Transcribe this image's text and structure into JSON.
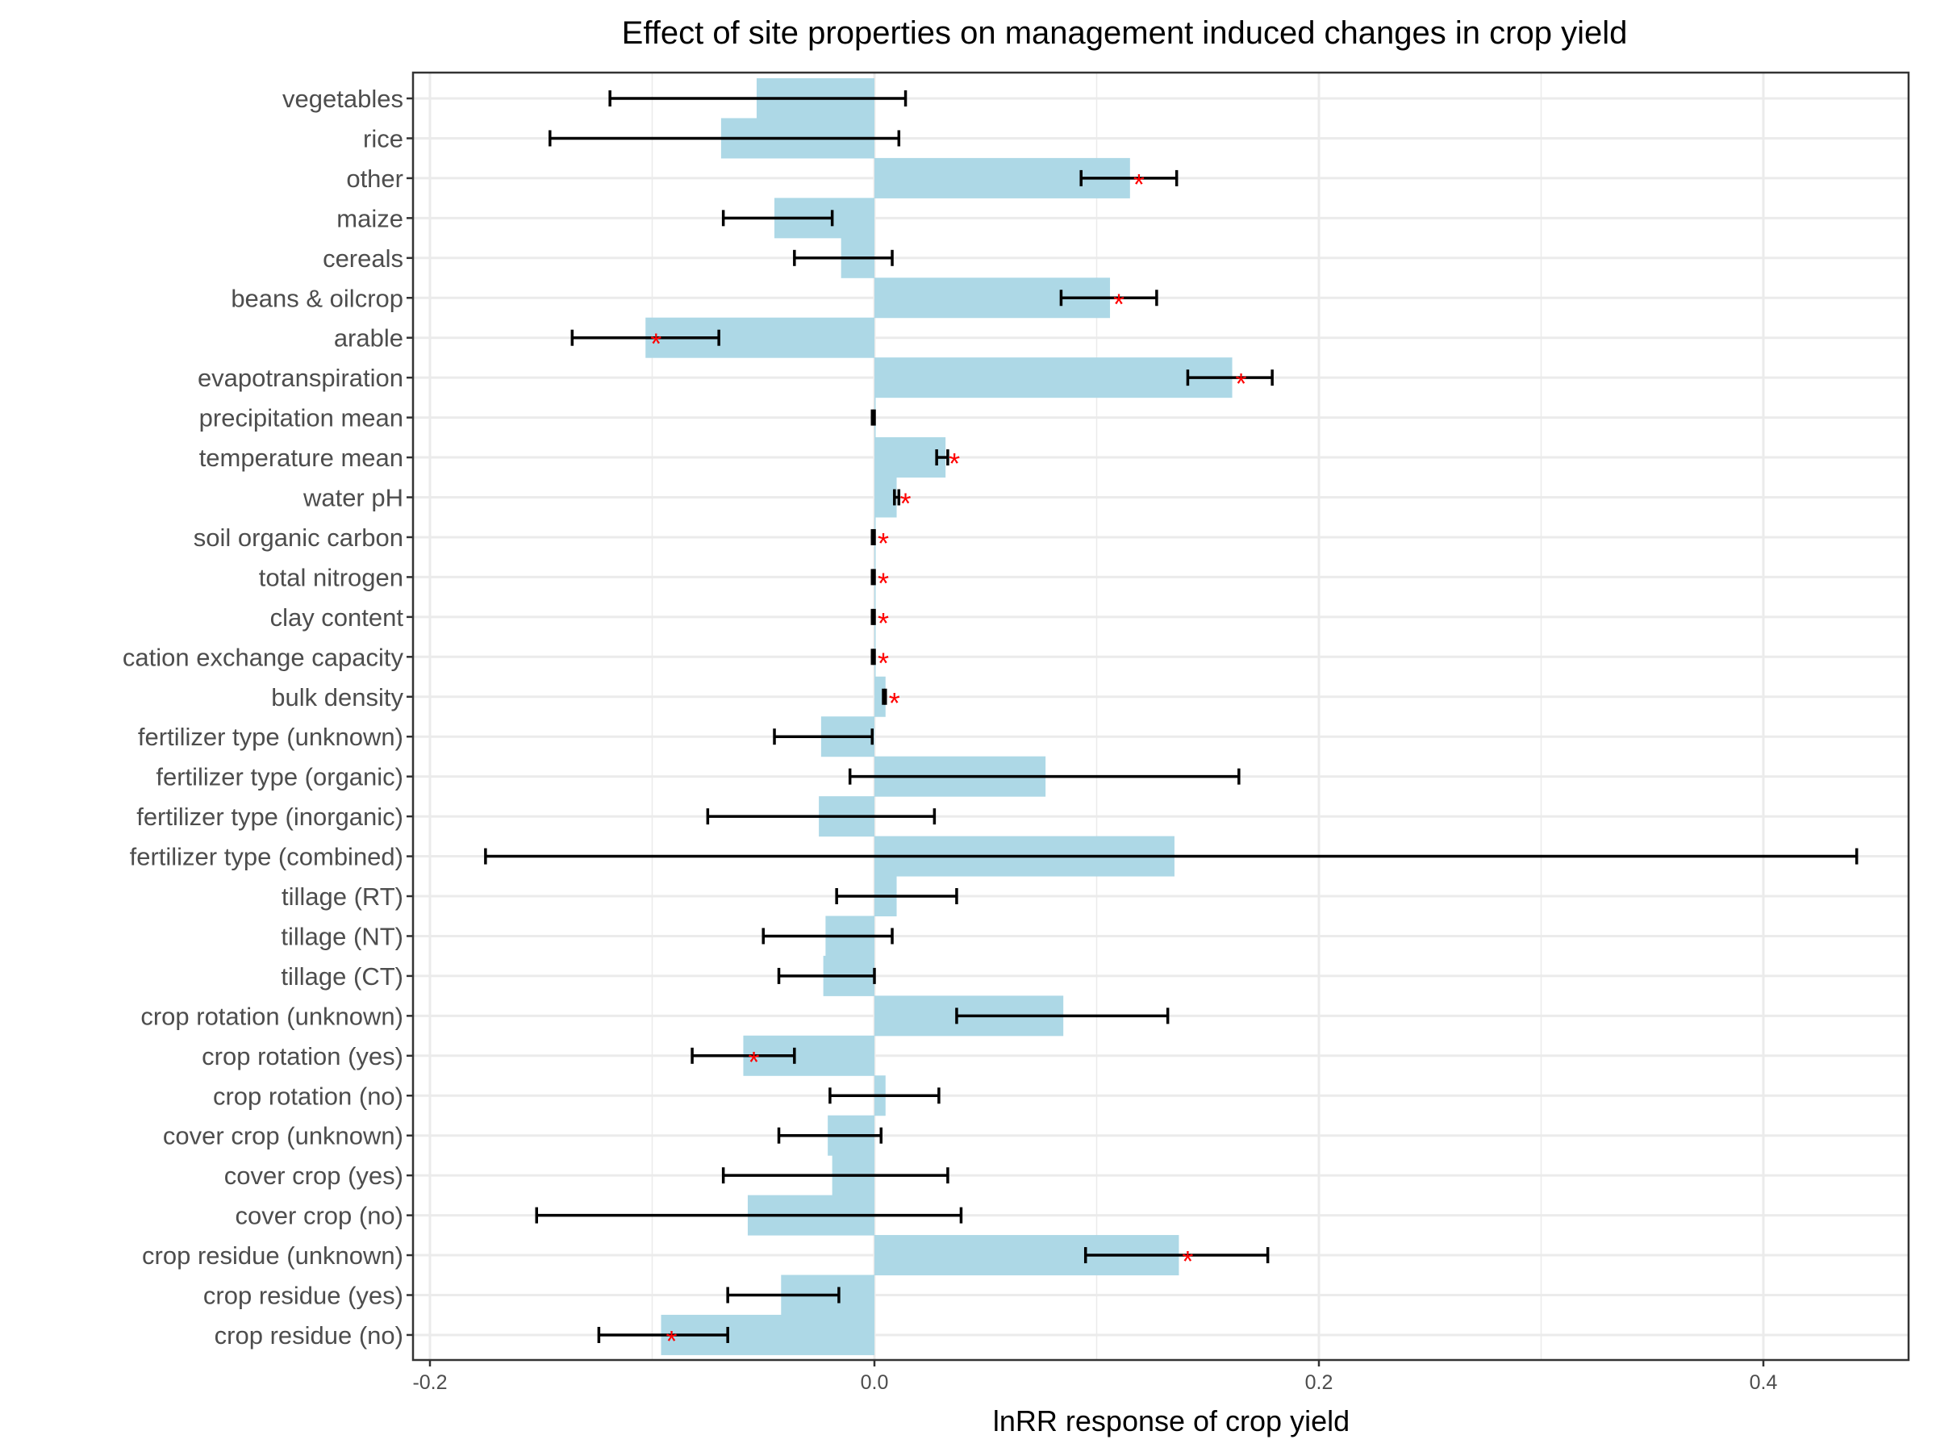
{
  "chart_data": {
    "type": "bar",
    "orientation": "horizontal",
    "title": "Effect of site properties on management induced changes in crop yield",
    "xlabel": "lnRR response of crop yield",
    "ylabel": "",
    "xlim": [
      -0.21,
      0.47
    ],
    "x_ticks": [
      -0.2,
      0.0,
      0.2,
      0.4
    ],
    "x_tick_labels": [
      "-0.2",
      "0.0",
      "0.2",
      "0.4"
    ],
    "grid": true,
    "colors": {
      "bar": "#add8e6",
      "errorbar": "#000000",
      "significance": "#ff0000",
      "grid": "#ebebeb",
      "panel_border": "#333333"
    },
    "significance_marker": "*",
    "categories": [
      "vegetables",
      "rice",
      "other",
      "maize",
      "cereals",
      "beans & oilcrop",
      "arable",
      "evapotranspiration",
      "precipitation mean",
      "temperature mean",
      "water pH",
      "soil organic carbon",
      "total nitrogen",
      "clay content",
      "cation exchange capacity",
      "bulk density",
      "fertilizer type (unknown)",
      "fertilizer type (organic)",
      "fertilizer type (inorganic)",
      "fertilizer type (combined)",
      "tillage (RT)",
      "tillage (NT)",
      "tillage (CT)",
      "crop rotation (unknown)",
      "crop rotation (yes)",
      "crop rotation (no)",
      "cover crop (unknown)",
      "cover crop (yes)",
      "cover crop (no)",
      "crop residue (unknown)",
      "crop residue (yes)",
      "crop residue (no)"
    ],
    "values": [
      -0.053,
      -0.069,
      0.115,
      -0.045,
      -0.015,
      0.106,
      -0.103,
      0.161,
      0.0,
      0.032,
      0.01,
      0.0,
      0.0,
      0.0,
      0.0,
      0.005,
      -0.024,
      0.077,
      -0.025,
      0.135,
      0.01,
      -0.022,
      -0.023,
      0.085,
      -0.059,
      0.005,
      -0.021,
      -0.019,
      -0.057,
      0.137,
      -0.042,
      -0.096
    ],
    "ci_low": [
      -0.119,
      -0.146,
      0.093,
      -0.068,
      -0.036,
      0.084,
      -0.136,
      0.141,
      -0.001,
      0.028,
      0.009,
      -0.001,
      -0.001,
      -0.001,
      -0.001,
      0.004,
      -0.045,
      -0.011,
      -0.075,
      -0.175,
      -0.017,
      -0.05,
      -0.043,
      0.037,
      -0.082,
      -0.02,
      -0.043,
      -0.068,
      -0.152,
      0.095,
      -0.066,
      -0.124
    ],
    "ci_high": [
      0.014,
      0.011,
      0.136,
      -0.019,
      0.008,
      0.127,
      -0.07,
      0.179,
      0.0,
      0.033,
      0.011,
      0.0,
      0.0,
      0.0,
      0.0,
      0.005,
      -0.001,
      0.164,
      0.027,
      0.442,
      0.037,
      0.008,
      0.0,
      0.132,
      -0.036,
      0.029,
      0.003,
      0.033,
      0.039,
      0.177,
      -0.016,
      -0.066
    ],
    "significant": [
      false,
      false,
      true,
      false,
      false,
      true,
      true,
      true,
      false,
      true,
      true,
      true,
      true,
      true,
      true,
      true,
      false,
      false,
      false,
      false,
      false,
      false,
      false,
      false,
      true,
      false,
      false,
      false,
      false,
      true,
      false,
      true
    ]
  }
}
